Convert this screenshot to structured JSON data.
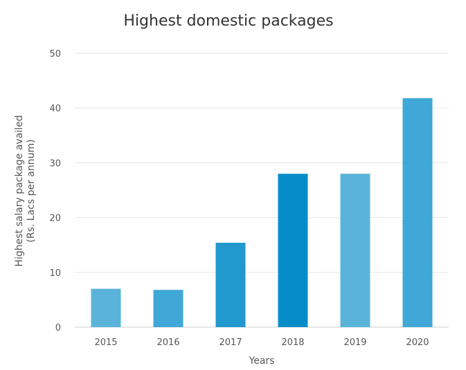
{
  "chart_data": {
    "type": "bar",
    "title": "Highest domestic packages",
    "xlabel": "Years",
    "ylabel_lines": [
      "Highest salary package availed",
      "(Rs. Lacs per annum)"
    ],
    "categories": [
      "2015",
      "2016",
      "2017",
      "2018",
      "2019",
      "2020"
    ],
    "values": [
      7,
      6.8,
      15.4,
      28,
      28,
      41.8
    ],
    "ylim": [
      0,
      50
    ],
    "yticks": [
      0,
      10,
      20,
      30,
      40,
      50
    ],
    "grid": true,
    "bar_colors": [
      "#5ab4d9",
      "#3fa8d6",
      "#2199cf",
      "#068dc8",
      "#5ab4d9",
      "#3fa8d6"
    ]
  }
}
